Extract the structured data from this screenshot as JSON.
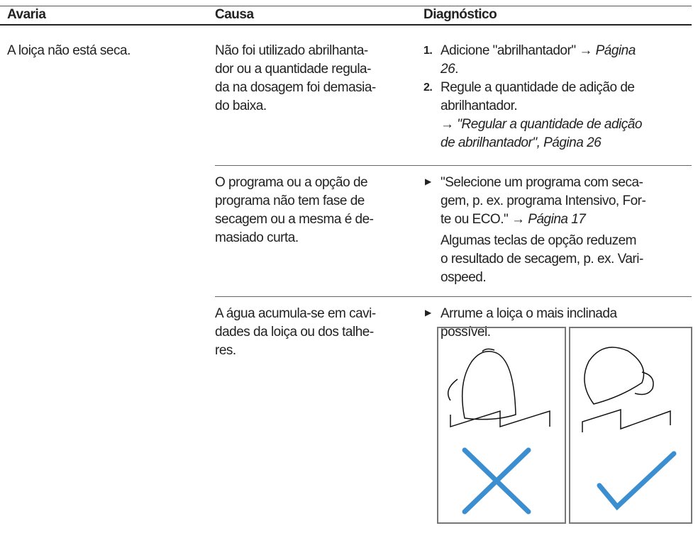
{
  "table": {
    "headers": [
      "Avaria",
      "Causa",
      "Diagnóstico"
    ],
    "rows": [
      {
        "avaria": "A loiça não está seca.",
        "causa": "Não foi utilizado abrilhanta-\ndor ou a quantidade regula-\nda na dosagem foi demasia-\ndo baixa.",
        "diagnostico": {
          "steps": [
            {
              "number": "1.",
              "text": "Adicione \"abrilhantador\" → ",
              "ref": "Página\n26",
              "after": "."
            },
            {
              "number": "2.",
              "text": "Regule a quantidade de adição de\nabrilhantador.\n→ ",
              "ref": "\"Regular a quantidade de adição\nde abrilhantador\", Página 26"
            }
          ]
        }
      },
      {
        "causa": "O programa ou a opção de\nprograma não tem fase de\nsecagem ou a mesma é de-\nmasiado curta.",
        "diagnostico": {
          "bullet": {
            "text": "\"Selecione um programa com seca-\ngem, p. ex. programa Intensivo, For-\nte ou ECO.\" → ",
            "ref": "Página 17"
          },
          "note": "Algumas teclas de opção reduzem\no resultado de secagem, p. ex. Vari-\nospeed."
        }
      },
      {
        "causa": "A água acumula-se em cavi-\ndades da loiça ou dos talhe-\nres.",
        "diagnostico": {
          "bullet": {
            "text": "Arrume a loiça o mais inclinada\npossível."
          }
        }
      }
    ]
  }
}
